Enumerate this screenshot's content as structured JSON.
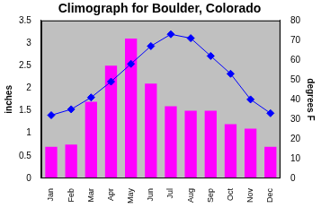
{
  "chart_data": {
    "type": "bar",
    "title": "Climograph for Boulder, Colorado",
    "categories": [
      "Jan",
      "Feb",
      "Mar",
      "Apr",
      "May",
      "Jun",
      "Jul",
      "Aug",
      "Sep",
      "Oct",
      "Nov",
      "Dec"
    ],
    "series": [
      {
        "type": "bar",
        "color": "#ff00ff",
        "values": [
          0.7,
          0.75,
          1.7,
          2.5,
          3.1,
          2.1,
          1.6,
          1.5,
          1.5,
          1.2,
          1.1,
          0.7
        ]
      },
      {
        "type": "line",
        "axis": "y2",
        "color": "#0000ff",
        "marker": "diamond",
        "values": [
          32,
          35,
          41,
          49,
          58,
          67,
          73,
          71,
          62,
          53,
          40,
          33
        ]
      }
    ],
    "ylabel": "inches",
    "y2label": "degrees F",
    "ylim": [
      0,
      3.5
    ],
    "yticks": [
      0,
      0.5,
      1,
      1.5,
      2,
      2.5,
      3,
      3.5
    ],
    "y2lim": [
      0,
      80
    ],
    "y2ticks": [
      0,
      10,
      20,
      30,
      40,
      50,
      60,
      70,
      80
    ],
    "grid": false
  }
}
